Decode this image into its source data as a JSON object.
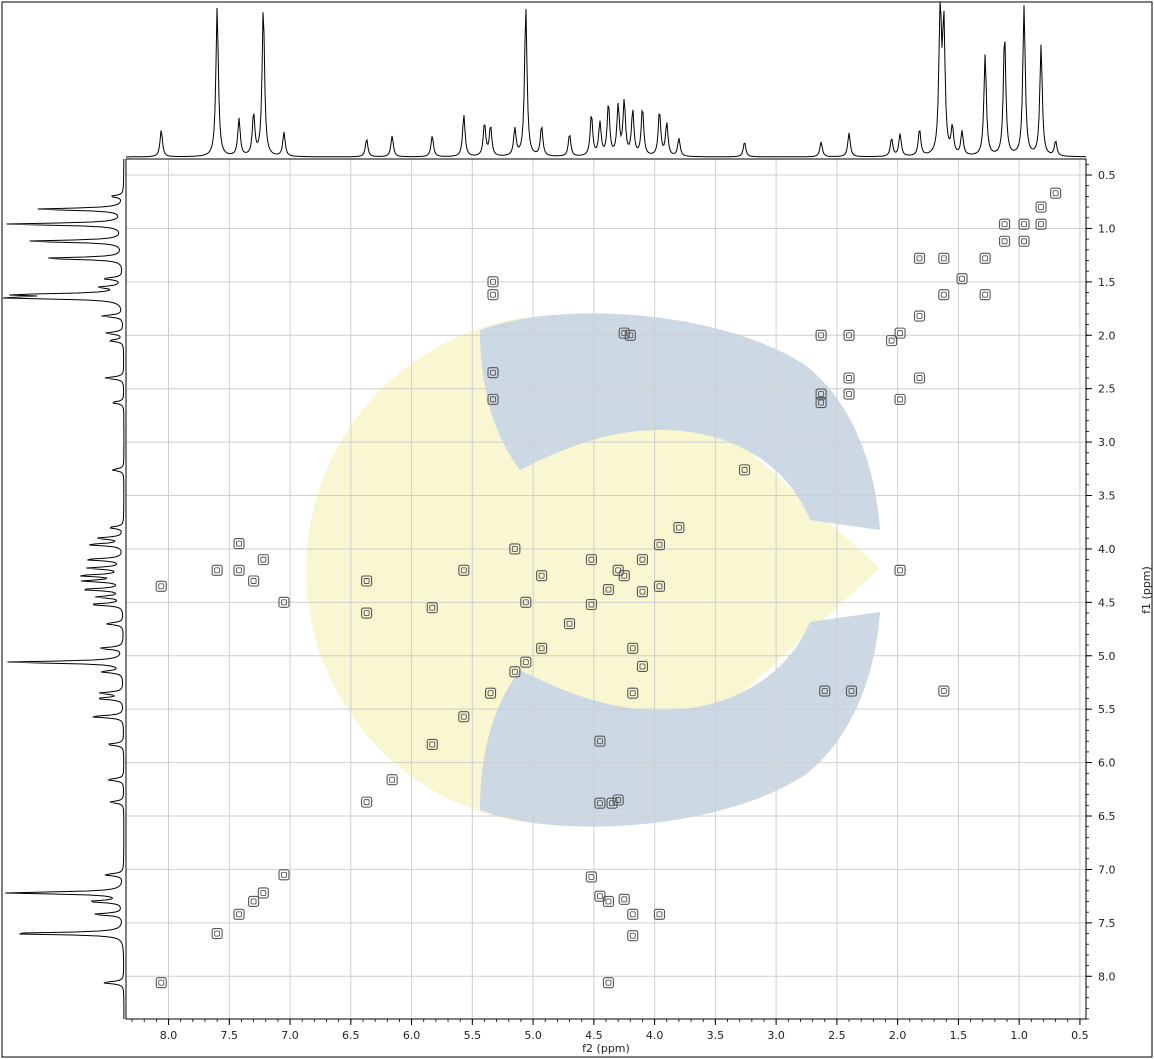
{
  "chart_data": {
    "type": "scatter",
    "title": "",
    "xlabel": "f2 (ppm)",
    "ylabel": "f1 (ppm)",
    "xlim": [
      8.35,
      0.45
    ],
    "ylim": [
      0.35,
      8.4
    ],
    "x_ticks": [
      "8.0",
      "7.5",
      "7.0",
      "6.5",
      "6.0",
      "5.5",
      "5.0",
      "4.5",
      "4.0",
      "3.5",
      "3.0",
      "2.5",
      "2.0",
      "1.5",
      "1.0",
      "0.5"
    ],
    "y_ticks": [
      "0.5",
      "1.0",
      "1.5",
      "2.0",
      "2.5",
      "3.0",
      "3.5",
      "4.0",
      "4.5",
      "5.0",
      "5.5",
      "6.0",
      "6.5",
      "7.0",
      "7.5",
      "8.0"
    ],
    "grid": true,
    "projection_peaks_ppm": [
      {
        "ppm": 8.06,
        "h": 0.18
      },
      {
        "ppm": 7.6,
        "h": 1.0
      },
      {
        "ppm": 7.42,
        "h": 0.25
      },
      {
        "ppm": 7.3,
        "h": 0.28
      },
      {
        "ppm": 7.22,
        "h": 1.0
      },
      {
        "ppm": 7.05,
        "h": 0.16
      },
      {
        "ppm": 6.37,
        "h": 0.12
      },
      {
        "ppm": 6.16,
        "h": 0.14
      },
      {
        "ppm": 5.83,
        "h": 0.14
      },
      {
        "ppm": 5.57,
        "h": 0.28
      },
      {
        "ppm": 5.4,
        "h": 0.22
      },
      {
        "ppm": 5.35,
        "h": 0.2
      },
      {
        "ppm": 5.15,
        "h": 0.18
      },
      {
        "ppm": 5.06,
        "h": 1.0
      },
      {
        "ppm": 4.93,
        "h": 0.2
      },
      {
        "ppm": 4.7,
        "h": 0.15
      },
      {
        "ppm": 4.52,
        "h": 0.28
      },
      {
        "ppm": 4.45,
        "h": 0.22
      },
      {
        "ppm": 4.38,
        "h": 0.35
      },
      {
        "ppm": 4.3,
        "h": 0.33
      },
      {
        "ppm": 4.25,
        "h": 0.36
      },
      {
        "ppm": 4.18,
        "h": 0.3
      },
      {
        "ppm": 4.1,
        "h": 0.32
      },
      {
        "ppm": 3.96,
        "h": 0.3
      },
      {
        "ppm": 3.9,
        "h": 0.22
      },
      {
        "ppm": 3.8,
        "h": 0.12
      },
      {
        "ppm": 3.26,
        "h": 0.1
      },
      {
        "ppm": 2.63,
        "h": 0.1
      },
      {
        "ppm": 2.4,
        "h": 0.16
      },
      {
        "ppm": 2.05,
        "h": 0.12
      },
      {
        "ppm": 1.98,
        "h": 0.15
      },
      {
        "ppm": 1.82,
        "h": 0.18
      },
      {
        "ppm": 1.65,
        "h": 1.0
      },
      {
        "ppm": 1.62,
        "h": 0.85
      },
      {
        "ppm": 1.55,
        "h": 0.18
      },
      {
        "ppm": 1.47,
        "h": 0.16
      },
      {
        "ppm": 1.28,
        "h": 0.68
      },
      {
        "ppm": 1.12,
        "h": 0.82
      },
      {
        "ppm": 0.96,
        "h": 1.0
      },
      {
        "ppm": 0.82,
        "h": 0.74
      },
      {
        "ppm": 0.7,
        "h": 0.1
      }
    ],
    "contour_peaks_ppm": [
      {
        "f2": 0.7,
        "f1": 0.67
      },
      {
        "f2": 0.82,
        "f1": 0.8
      },
      {
        "f2": 0.96,
        "f1": 0.96
      },
      {
        "f2": 1.12,
        "f1": 1.12
      },
      {
        "f2": 1.28,
        "f1": 1.28
      },
      {
        "f2": 1.47,
        "f1": 1.47
      },
      {
        "f2": 1.62,
        "f1": 1.62
      },
      {
        "f2": 1.82,
        "f1": 1.82
      },
      {
        "f2": 1.98,
        "f1": 1.98
      },
      {
        "f2": 2.05,
        "f1": 2.05
      },
      {
        "f2": 2.4,
        "f1": 2.4
      },
      {
        "f2": 2.63,
        "f1": 2.63
      },
      {
        "f2": 3.26,
        "f1": 3.26
      },
      {
        "f2": 3.96,
        "f1": 3.96
      },
      {
        "f2": 4.1,
        "f1": 4.1
      },
      {
        "f2": 4.25,
        "f1": 4.25
      },
      {
        "f2": 4.38,
        "f1": 4.38
      },
      {
        "f2": 4.52,
        "f1": 4.52
      },
      {
        "f2": 4.7,
        "f1": 4.7
      },
      {
        "f2": 4.93,
        "f1": 4.93
      },
      {
        "f2": 5.06,
        "f1": 5.06
      },
      {
        "f2": 5.15,
        "f1": 5.15
      },
      {
        "f2": 5.35,
        "f1": 5.35
      },
      {
        "f2": 5.57,
        "f1": 5.57
      },
      {
        "f2": 5.83,
        "f1": 5.83
      },
      {
        "f2": 6.16,
        "f1": 6.16
      },
      {
        "f2": 6.37,
        "f1": 6.37
      },
      {
        "f2": 7.05,
        "f1": 7.05
      },
      {
        "f2": 7.22,
        "f1": 7.22
      },
      {
        "f2": 7.3,
        "f1": 7.3
      },
      {
        "f2": 7.42,
        "f1": 7.42
      },
      {
        "f2": 7.6,
        "f1": 7.6
      },
      {
        "f2": 8.06,
        "f1": 8.06
      },
      {
        "f2": 0.96,
        "f1": 1.12
      },
      {
        "f2": 1.12,
        "f1": 0.96
      },
      {
        "f2": 0.82,
        "f1": 0.96
      },
      {
        "f2": 1.28,
        "f1": 1.62
      },
      {
        "f2": 1.62,
        "f1": 1.28
      },
      {
        "f2": 1.82,
        "f1": 1.28
      },
      {
        "f2": 1.62,
        "f1": 5.33
      },
      {
        "f2": 5.33,
        "f1": 1.62
      },
      {
        "f2": 1.98,
        "f1": 4.2
      },
      {
        "f2": 4.2,
        "f1": 2.0
      },
      {
        "f2": 5.33,
        "f1": 2.35
      },
      {
        "f2": 5.33,
        "f1": 2.6
      },
      {
        "f2": 2.63,
        "f1": 2.0
      },
      {
        "f2": 2.63,
        "f1": 2.55
      },
      {
        "f2": 2.4,
        "f1": 2.0
      },
      {
        "f2": 2.4,
        "f1": 2.55
      },
      {
        "f2": 1.82,
        "f1": 2.4
      },
      {
        "f2": 1.98,
        "f1": 2.6
      },
      {
        "f2": 2.6,
        "f1": 5.33
      },
      {
        "f2": 2.38,
        "f1": 5.33
      },
      {
        "f2": 4.45,
        "f1": 5.8
      },
      {
        "f2": 4.45,
        "f1": 6.38
      },
      {
        "f2": 4.35,
        "f1": 6.38
      },
      {
        "f2": 4.3,
        "f1": 6.35
      },
      {
        "f2": 6.37,
        "f1": 4.6
      },
      {
        "f2": 6.37,
        "f1": 4.3
      },
      {
        "f2": 5.83,
        "f1": 4.55
      },
      {
        "f2": 5.57,
        "f1": 4.2
      },
      {
        "f2": 5.15,
        "f1": 4.0
      },
      {
        "f2": 5.06,
        "f1": 4.5
      },
      {
        "f2": 4.93,
        "f1": 4.25
      },
      {
        "f2": 7.6,
        "f1": 4.2
      },
      {
        "f2": 7.42,
        "f1": 4.2
      },
      {
        "f2": 7.42,
        "f1": 3.95
      },
      {
        "f2": 7.3,
        "f1": 4.3
      },
      {
        "f2": 7.22,
        "f1": 4.1
      },
      {
        "f2": 7.05,
        "f1": 4.5
      },
      {
        "f2": 8.06,
        "f1": 4.35
      },
      {
        "f2": 4.45,
        "f1": 7.25
      },
      {
        "f2": 4.38,
        "f1": 7.3
      },
      {
        "f2": 4.25,
        "f1": 7.28
      },
      {
        "f2": 4.18,
        "f1": 7.42
      },
      {
        "f2": 3.96,
        "f1": 7.42
      },
      {
        "f2": 4.18,
        "f1": 7.62
      },
      {
        "f2": 4.38,
        "f1": 8.06
      },
      {
        "f2": 4.52,
        "f1": 7.07
      },
      {
        "f2": 5.33,
        "f1": 1.5
      },
      {
        "f2": 4.25,
        "f1": 1.98
      },
      {
        "f2": 4.18,
        "f1": 4.93
      },
      {
        "f2": 4.18,
        "f1": 5.35
      },
      {
        "f2": 4.1,
        "f1": 5.1
      },
      {
        "f2": 3.96,
        "f1": 4.35
      },
      {
        "f2": 3.8,
        "f1": 3.8
      },
      {
        "f2": 4.52,
        "f1": 4.1
      },
      {
        "f2": 4.3,
        "f1": 4.2
      },
      {
        "f2": 4.1,
        "f1": 4.4
      }
    ]
  },
  "colors": {
    "frame": "#000000",
    "grid": "#cfcfcf",
    "projection": "#000000",
    "contour": "#555555",
    "watermark_blue": "#c4d2df",
    "watermark_yellow": "#f7f6c9"
  }
}
